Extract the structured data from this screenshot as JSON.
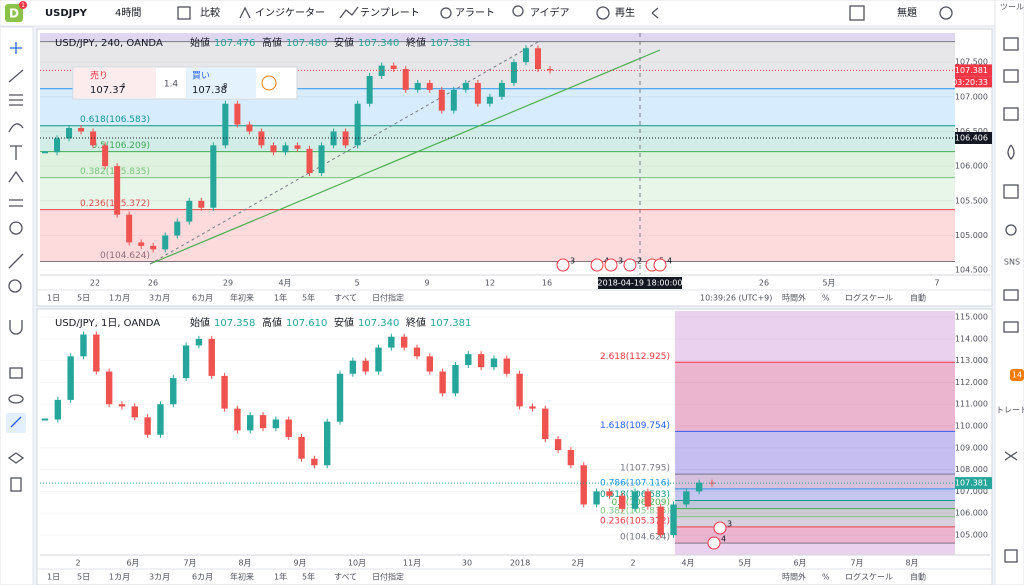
{
  "toolbar": {
    "logo": "D",
    "badge": "1",
    "symbol": "USDJPY",
    "interval": "4時間",
    "items": [
      "比較",
      "インジケーター",
      "テンプレート",
      "アラート",
      "アイデア",
      "再生"
    ],
    "layout_name": "無題"
  },
  "right_sidebar": {
    "title": "ツール",
    "items": [
      "SNS",
      "トレード"
    ],
    "badge": "14"
  },
  "charts": [
    {
      "title": "USD/JPY, 240, OANDA",
      "ohlc": [
        {
          "label": "始値",
          "value": "107.476"
        },
        {
          "label": "高値",
          "value": "107.480"
        },
        {
          "label": "安値",
          "value": "107.340"
        },
        {
          "label": "終値",
          "value": "107.381"
        }
      ],
      "order_panel": {
        "sell_label": "売り",
        "sell": "107.37",
        "sell_sup": "4",
        "spread": "1.4",
        "buy_label": "買い",
        "buy": "107.38",
        "buy_sup": "8"
      },
      "ylim": [
        104.43,
        107.92
      ],
      "yticks": [
        {
          "value": 104.5,
          "label": "104.500"
        },
        {
          "value": 105,
          "label": "105.000"
        },
        {
          "value": 105.5,
          "label": "105.500"
        },
        {
          "value": 106,
          "label": "106.000"
        },
        {
          "value": 106.5,
          "label": "106.500"
        },
        {
          "value": 107,
          "label": "107.000"
        },
        {
          "value": 107.5,
          "label": "107.500"
        }
      ],
      "xticks": [
        "22",
        "26",
        "29",
        "4月",
        "5",
        "9",
        "12",
        "16",
        "3",
        "26",
        "5月",
        "7"
      ],
      "fib": [
        {
          "label": "0(104.624)",
          "value": 104.624,
          "color": "#787b86"
        },
        {
          "label": "0.236(105.372)",
          "value": 105.372,
          "color": "#f23645"
        },
        {
          "label": "0.382(105.835)",
          "value": 105.835,
          "color": "#81c784"
        },
        {
          "label": "0.5(106.209)",
          "value": 106.209,
          "color": "#4caf50"
        },
        {
          "label": "0.618(106.583)",
          "value": 106.583,
          "color": "#089981"
        },
        {
          "label": null,
          "value": 107.116,
          "color": "#2196f3"
        },
        {
          "label": null,
          "value": 107.795,
          "color": "#787b86"
        }
      ],
      "price_labels": [
        {
          "text": "107.381",
          "value": 107.381,
          "color": "#f23645",
          "sub": "03:20:33"
        },
        {
          "text": "106.406",
          "value": 106.406,
          "color": "#131722",
          "sub": null
        }
      ],
      "crosshair_time": "2018-04-19 18:00:00",
      "events": [
        "3",
        "4",
        "3",
        "2",
        "5",
        "4"
      ],
      "closes": [
        106.2,
        106.4,
        106.55,
        106.5,
        106.3,
        106.0,
        105.3,
        104.9,
        104.85,
        104.8,
        105.0,
        105.2,
        105.5,
        105.4,
        106.3,
        106.9,
        106.6,
        106.5,
        106.3,
        106.2,
        106.3,
        106.25,
        105.9,
        106.3,
        106.5,
        106.3,
        106.9,
        107.3,
        107.45,
        107.4,
        107.1,
        107.2,
        107.1,
        106.8,
        107.1,
        107.2,
        106.9,
        107.0,
        107.2,
        107.5,
        107.7,
        107.4,
        107.381
      ],
      "range_bar": [
        "1日",
        "5日",
        "1カ月",
        "3カ月",
        "6カ月",
        "年初来",
        "1年",
        "5年",
        "すべて",
        "日付指定"
      ],
      "status_bar": [
        "10:39:26 (UTC+9)",
        "時間外",
        "%",
        "ログスケール",
        "自動"
      ]
    },
    {
      "title": "USD/JPY, 1日, OANDA",
      "ohlc": [
        {
          "label": "始値",
          "value": "107.358"
        },
        {
          "label": "高値",
          "value": "107.610"
        },
        {
          "label": "安値",
          "value": "107.340"
        },
        {
          "label": "終値",
          "value": "107.381"
        }
      ],
      "order_panel": null,
      "ylim": [
        104.08,
        115.28
      ],
      "yticks": [
        {
          "value": 105,
          "label": "105.000"
        },
        {
          "value": 106,
          "label": "106.000"
        },
        {
          "value": 107,
          "label": "107.000"
        },
        {
          "value": 108,
          "label": "108.000"
        },
        {
          "value": 109,
          "label": "109.000"
        },
        {
          "value": 110,
          "label": "110.000"
        },
        {
          "value": 111,
          "label": "111.000"
        },
        {
          "value": 112,
          "label": "112.000"
        },
        {
          "value": 113,
          "label": "113.000"
        },
        {
          "value": 114,
          "label": "114.000"
        },
        {
          "value": 115,
          "label": "115.000"
        }
      ],
      "xticks": [
        "2",
        "6月",
        "7月",
        "8月",
        "9月",
        "10月",
        "11月",
        "30",
        "2018",
        "2月",
        "2",
        "4月",
        "5月",
        "6月",
        "7月",
        "8月"
      ],
      "fib": [
        {
          "label": "0(104.624)",
          "value": 104.624,
          "color": "#787b86"
        },
        {
          "label": "0.236(105.372)",
          "value": 105.372,
          "color": "#f23645"
        },
        {
          "label": "0.382(105.835)",
          "value": 105.835,
          "color": "#81c784"
        },
        {
          "label": "0.5(106.209)",
          "value": 106.209,
          "color": "#4caf50"
        },
        {
          "label": "0.618(106.583)",
          "value": 106.583,
          "color": "#089981"
        },
        {
          "label": "0.786(107.116)",
          "value": 107.116,
          "color": "#2196f3"
        },
        {
          "label": "1(107.795)",
          "value": 107.795,
          "color": "#787b86"
        },
        {
          "label": "1.618(109.754)",
          "value": 109.754,
          "color": "#2962ff"
        },
        {
          "label": "2.618(112.925)",
          "value": 112.925,
          "color": "#f23645"
        }
      ],
      "price_labels": [
        {
          "text": "107.381",
          "value": 107.381,
          "color": "#26a69a",
          "sub": null
        }
      ],
      "crosshair_time": null,
      "events": [
        "3",
        "4"
      ],
      "closes": [
        110.3,
        111.2,
        113.2,
        114.2,
        112.5,
        111.0,
        110.9,
        110.4,
        109.6,
        111.0,
        112.2,
        113.7,
        114.0,
        112.3,
        110.8,
        109.8,
        110.5,
        109.9,
        110.3,
        109.5,
        108.5,
        108.2,
        110.2,
        112.4,
        113.0,
        112.5,
        113.6,
        114.1,
        113.6,
        113.2,
        112.5,
        111.5,
        112.8,
        113.3,
        112.7,
        113.1,
        112.4,
        110.9,
        110.8,
        109.4,
        108.9,
        108.2,
        106.4,
        107.0,
        106.8,
        106.2,
        107.0,
        106.3,
        105.0,
        106.4,
        107.0,
        107.4,
        107.381
      ],
      "range_bar": [
        "1日",
        "5日",
        "1カ月",
        "3カ月",
        "6カ月",
        "年初来",
        "1年",
        "5年",
        "すべて",
        "日付指定"
      ],
      "status_bar": [
        "時間外",
        "%",
        "ログスケール",
        "自動"
      ]
    }
  ]
}
